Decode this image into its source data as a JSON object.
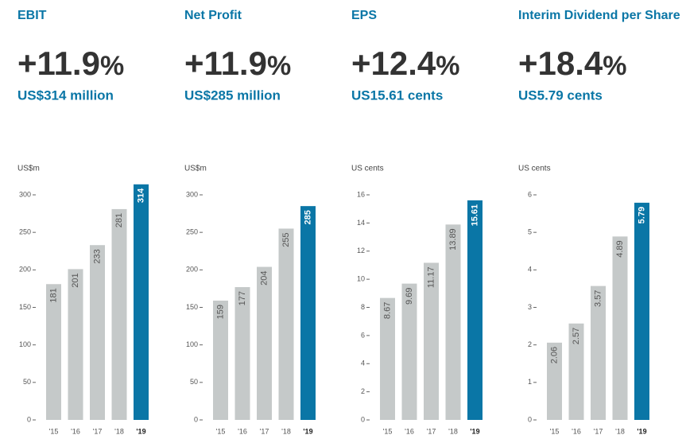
{
  "chart_data": [
    {
      "type": "bar",
      "title": "EBIT",
      "headline": "+11.9",
      "headline_unit": "%",
      "subtitle": "US$314 million",
      "ylabel": "US$m",
      "categories": [
        "'15",
        "'16",
        "'17",
        "'18",
        "'19"
      ],
      "values": [
        181,
        201,
        233,
        281,
        314
      ],
      "colors": [
        "#c5c9c9",
        "#c5c9c9",
        "#c5c9c9",
        "#c5c9c9",
        "#0a76a6"
      ],
      "ylim": [
        0,
        320
      ],
      "yticks": [
        0,
        50,
        100,
        150,
        200,
        250,
        300
      ]
    },
    {
      "type": "bar",
      "title": "Net Profit",
      "headline": "+11.9",
      "headline_unit": "%",
      "subtitle": "US$285 million",
      "ylabel": "US$m",
      "categories": [
        "'15",
        "'16",
        "'17",
        "'18",
        "'19"
      ],
      "values": [
        159,
        177,
        204,
        255,
        285
      ],
      "colors": [
        "#c5c9c9",
        "#c5c9c9",
        "#c5c9c9",
        "#c5c9c9",
        "#0a76a6"
      ],
      "ylim": [
        0,
        320
      ],
      "yticks": [
        0,
        50,
        100,
        150,
        200,
        250,
        300
      ]
    },
    {
      "type": "bar",
      "title": "EPS",
      "headline": "+12.4",
      "headline_unit": "%",
      "subtitle": "US15.61 cents",
      "ylabel": "US cents",
      "categories": [
        "'15",
        "'16",
        "'17",
        "'18",
        "'19"
      ],
      "values": [
        8.67,
        9.69,
        11.17,
        13.89,
        15.61
      ],
      "colors": [
        "#c5c9c9",
        "#c5c9c9",
        "#c5c9c9",
        "#c5c9c9",
        "#0a76a6"
      ],
      "ylim": [
        0,
        17
      ],
      "yticks": [
        0,
        2,
        4,
        6,
        8,
        10,
        12,
        14,
        16
      ]
    },
    {
      "type": "bar",
      "title": "Interim Dividend per Share",
      "headline": "+18.4",
      "headline_unit": "%",
      "subtitle": "US5.79 cents",
      "ylabel": "US cents",
      "categories": [
        "'15",
        "'16",
        "'17",
        "'18",
        "'19"
      ],
      "values": [
        2.06,
        2.57,
        3.57,
        4.89,
        5.79
      ],
      "colors": [
        "#c5c9c9",
        "#c5c9c9",
        "#c5c9c9",
        "#c5c9c9",
        "#0a76a6"
      ],
      "ylim": [
        0,
        6.4
      ],
      "yticks": [
        0,
        1,
        2,
        3,
        4,
        5,
        6
      ]
    }
  ]
}
